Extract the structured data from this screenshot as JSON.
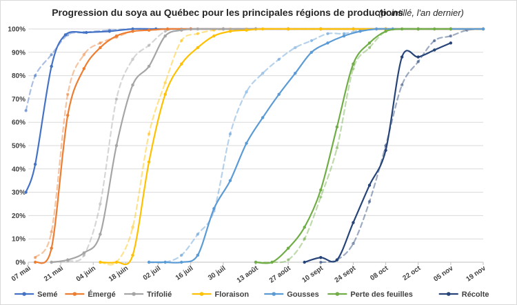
{
  "chart_data": {
    "type": "line",
    "title": "Progression du soya au Québec pour les principales régions de productions",
    "subtitle": "(pointillé, l'an dernier)",
    "xlabel": "",
    "ylabel": "",
    "x_tick_labels": [
      "07 mai",
      "21 mai",
      "04 juin",
      "18 juin",
      "02 juil",
      "16 juil",
      "30 juil",
      "13 août",
      "27 août",
      "10 sept",
      "24 sept",
      "08 oct",
      "22 oct",
      "05 nov",
      "19 nov"
    ],
    "x_tick_days": [
      0,
      14,
      28,
      42,
      56,
      70,
      84,
      98,
      112,
      126,
      140,
      154,
      168,
      182,
      196
    ],
    "y_tick_labels": [
      "0%",
      "10%",
      "20%",
      "30%",
      "40%",
      "50%",
      "60%",
      "70%",
      "80%",
      "90%",
      "100%"
    ],
    "ylim": [
      0,
      100
    ],
    "grid": true,
    "legend_position": "bottom",
    "series": [
      {
        "name": "Semé",
        "color": "#4472c4",
        "current": [
          [
            -1,
            30
          ],
          [
            3,
            42
          ],
          [
            10,
            84
          ],
          [
            16,
            97.5
          ],
          [
            25,
            98.5
          ],
          [
            35,
            99
          ],
          [
            45,
            100
          ],
          [
            55,
            100
          ],
          [
            70,
            100
          ],
          [
            84,
            100
          ],
          [
            98,
            100
          ],
          [
            112,
            100
          ],
          [
            126,
            100
          ],
          [
            140,
            100
          ],
          [
            154,
            100
          ],
          [
            168,
            100
          ],
          [
            182,
            100
          ],
          [
            196,
            100
          ]
        ],
        "previous": [
          [
            -1,
            65
          ],
          [
            3,
            80
          ],
          [
            10,
            89
          ],
          [
            17,
            97.5
          ],
          [
            24,
            98.5
          ],
          [
            35,
            99.5
          ],
          [
            45,
            100
          ],
          [
            55,
            100
          ],
          [
            70,
            100
          ],
          [
            84,
            100
          ],
          [
            98,
            100
          ],
          [
            112,
            100
          ],
          [
            126,
            100
          ],
          [
            140,
            100
          ],
          [
            154,
            100
          ],
          [
            168,
            100
          ],
          [
            182,
            100
          ],
          [
            196,
            100
          ]
        ]
      },
      {
        "name": "Émergé",
        "color": "#ed7d31",
        "current": [
          [
            3,
            0
          ],
          [
            10,
            6
          ],
          [
            17,
            63
          ],
          [
            24,
            83
          ],
          [
            31,
            92
          ],
          [
            38,
            97
          ],
          [
            45,
            99
          ],
          [
            52,
            99.5
          ],
          [
            60,
            100
          ],
          [
            70,
            100
          ],
          [
            84,
            100
          ],
          [
            98,
            100
          ],
          [
            112,
            100
          ],
          [
            126,
            100
          ],
          [
            140,
            100
          ],
          [
            154,
            100
          ],
          [
            168,
            100
          ],
          [
            182,
            100
          ],
          [
            196,
            100
          ]
        ],
        "previous": [
          [
            3,
            2
          ],
          [
            10,
            13
          ],
          [
            17,
            72
          ],
          [
            24,
            89
          ],
          [
            31,
            94
          ],
          [
            38,
            96.5
          ],
          [
            45,
            99
          ],
          [
            52,
            99.5
          ],
          [
            60,
            100
          ],
          [
            70,
            100
          ],
          [
            84,
            100
          ],
          [
            98,
            100
          ],
          [
            112,
            100
          ],
          [
            126,
            100
          ],
          [
            140,
            100
          ],
          [
            154,
            100
          ],
          [
            168,
            100
          ],
          [
            182,
            100
          ],
          [
            196,
            100
          ]
        ]
      },
      {
        "name": "Trifolié",
        "color": "#a5a5a5",
        "current": [
          [
            10,
            0
          ],
          [
            17,
            1
          ],
          [
            24,
            4
          ],
          [
            31,
            12
          ],
          [
            38,
            50
          ],
          [
            45,
            76
          ],
          [
            52,
            84
          ],
          [
            59,
            97
          ],
          [
            66,
            99.5
          ],
          [
            73,
            100
          ],
          [
            84,
            100
          ],
          [
            98,
            100
          ],
          [
            112,
            100
          ],
          [
            126,
            100
          ],
          [
            140,
            100
          ],
          [
            154,
            100
          ],
          [
            168,
            100
          ],
          [
            182,
            100
          ],
          [
            196,
            100
          ]
        ],
        "previous": [
          [
            10,
            0
          ],
          [
            17,
            0.5
          ],
          [
            24,
            3
          ],
          [
            31,
            25
          ],
          [
            38,
            70
          ],
          [
            45,
            87
          ],
          [
            52,
            93
          ],
          [
            59,
            99
          ],
          [
            66,
            100
          ],
          [
            73,
            100
          ],
          [
            84,
            100
          ],
          [
            98,
            100
          ],
          [
            112,
            100
          ],
          [
            126,
            100
          ],
          [
            140,
            100
          ],
          [
            154,
            100
          ],
          [
            168,
            100
          ],
          [
            182,
            100
          ],
          [
            196,
            100
          ]
        ]
      },
      {
        "name": "Floraison",
        "color": "#ffc000",
        "current": [
          [
            31,
            0
          ],
          [
            38,
            0
          ],
          [
            45,
            3
          ],
          [
            52,
            43
          ],
          [
            59,
            72
          ],
          [
            66,
            85
          ],
          [
            73,
            92
          ],
          [
            80,
            97
          ],
          [
            87,
            99
          ],
          [
            94,
            99.5
          ],
          [
            101,
            100
          ],
          [
            112,
            100
          ],
          [
            126,
            100
          ],
          [
            140,
            100
          ],
          [
            154,
            100
          ],
          [
            168,
            100
          ],
          [
            182,
            100
          ],
          [
            196,
            100
          ]
        ],
        "previous": [
          [
            31,
            0
          ],
          [
            38,
            0
          ],
          [
            45,
            15
          ],
          [
            52,
            55
          ],
          [
            59,
            77
          ],
          [
            66,
            95
          ],
          [
            73,
            98
          ],
          [
            80,
            99.5
          ],
          [
            87,
            100
          ],
          [
            94,
            100
          ],
          [
            101,
            100
          ],
          [
            112,
            100
          ],
          [
            126,
            100
          ],
          [
            140,
            100
          ],
          [
            154,
            100
          ],
          [
            168,
            100
          ],
          [
            182,
            100
          ],
          [
            196,
            100
          ]
        ]
      },
      {
        "name": "Gousses",
        "color": "#5b9bd5",
        "current": [
          [
            52,
            0
          ],
          [
            59,
            0
          ],
          [
            66,
            0
          ],
          [
            73,
            3
          ],
          [
            80,
            23
          ],
          [
            87,
            35
          ],
          [
            94,
            51
          ],
          [
            101,
            62
          ],
          [
            108,
            72
          ],
          [
            115,
            81
          ],
          [
            122,
            90
          ],
          [
            129,
            94
          ],
          [
            136,
            97
          ],
          [
            143,
            99
          ],
          [
            150,
            100
          ],
          [
            157,
            100
          ],
          [
            168,
            100
          ],
          [
            182,
            100
          ],
          [
            196,
            100
          ]
        ],
        "previous": [
          [
            52,
            0
          ],
          [
            59,
            0
          ],
          [
            66,
            3
          ],
          [
            73,
            12
          ],
          [
            80,
            22
          ],
          [
            87,
            55
          ],
          [
            94,
            73
          ],
          [
            101,
            81
          ],
          [
            108,
            87
          ],
          [
            115,
            92
          ],
          [
            122,
            95
          ],
          [
            129,
            98
          ],
          [
            136,
            98
          ],
          [
            143,
            99.5
          ],
          [
            150,
            100
          ],
          [
            157,
            100
          ],
          [
            168,
            100
          ],
          [
            182,
            100
          ],
          [
            196,
            100
          ]
        ]
      },
      {
        "name": "Perte des feuilles",
        "color": "#70ad47",
        "current": [
          [
            98,
            0
          ],
          [
            105,
            0
          ],
          [
            112,
            6
          ],
          [
            119,
            15
          ],
          [
            126,
            31
          ],
          [
            133,
            58
          ],
          [
            140,
            85
          ],
          [
            147,
            94
          ],
          [
            154,
            99
          ],
          [
            161,
            100
          ],
          [
            168,
            100
          ],
          [
            175,
            100
          ],
          [
            182,
            100
          ]
        ],
        "previous": [
          [
            98,
            0
          ],
          [
            105,
            0
          ],
          [
            112,
            1
          ],
          [
            119,
            10
          ],
          [
            126,
            28
          ],
          [
            133,
            49
          ],
          [
            140,
            83
          ],
          [
            147,
            92
          ],
          [
            154,
            99
          ],
          [
            161,
            100
          ],
          [
            168,
            100
          ],
          [
            175,
            100
          ],
          [
            182,
            100
          ]
        ]
      },
      {
        "name": "Récolte",
        "color": "#264478",
        "current": [
          [
            119,
            0
          ],
          [
            126,
            2
          ],
          [
            133,
            1
          ],
          [
            140,
            17
          ],
          [
            147,
            33
          ],
          [
            154,
            48
          ],
          [
            161,
            88
          ],
          [
            168,
            88
          ],
          [
            175,
            91
          ],
          [
            182,
            94
          ]
        ],
        "previous": [
          [
            126,
            0
          ],
          [
            133,
            1
          ],
          [
            140,
            8
          ],
          [
            147,
            26
          ],
          [
            154,
            50
          ],
          [
            161,
            76
          ],
          [
            168,
            86
          ],
          [
            175,
            95
          ],
          [
            182,
            97
          ],
          [
            189,
            99.5
          ],
          [
            196,
            100
          ]
        ]
      }
    ]
  }
}
